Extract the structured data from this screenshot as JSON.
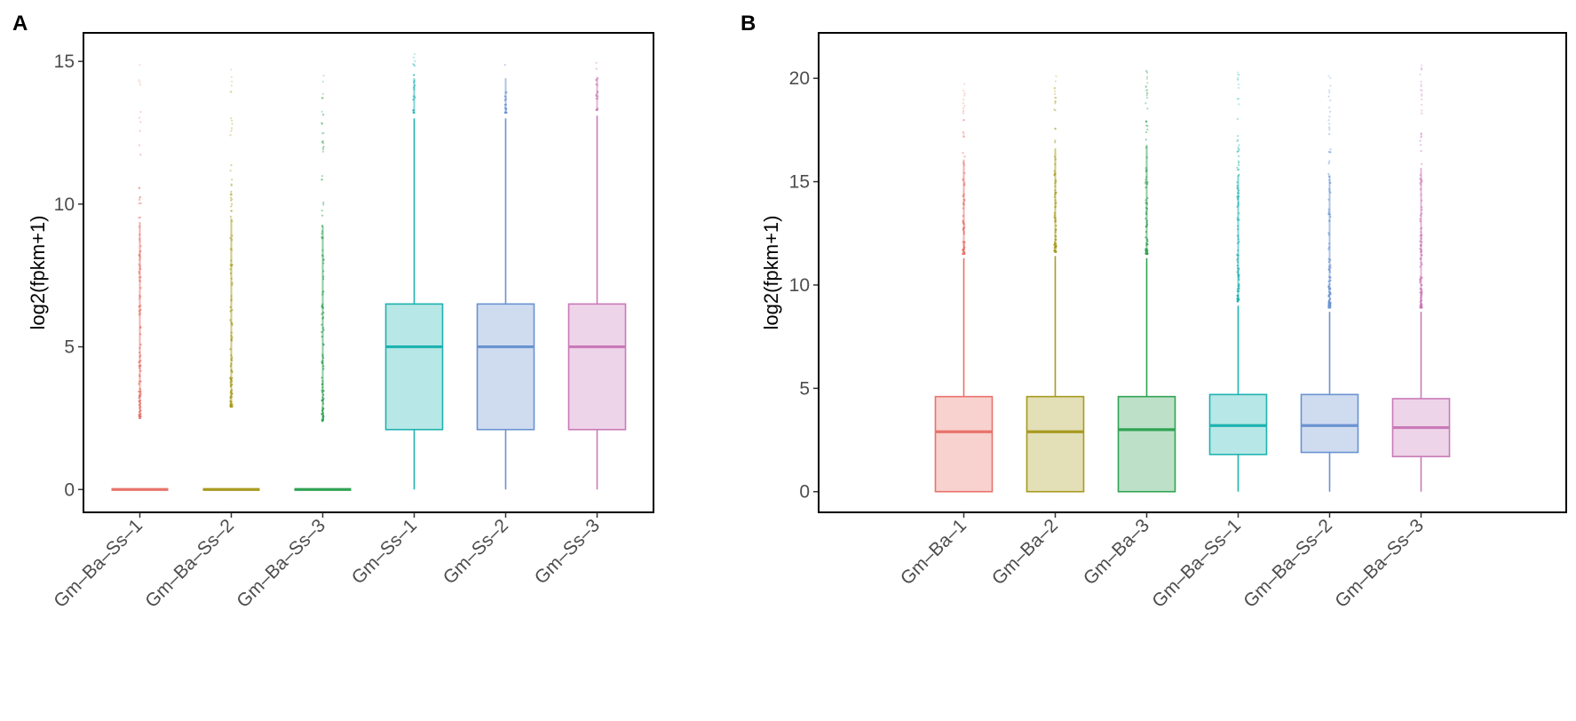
{
  "chart_data": [
    {
      "type": "boxplot",
      "panel": "A",
      "ylabel": "log2(fpkm+1)",
      "xlabel": "",
      "ylim": [
        -0.8,
        16.0
      ],
      "yticks": [
        0,
        5,
        10,
        15
      ],
      "ytick_labels": [
        "0",
        "5",
        "10",
        "15"
      ],
      "categories": [
        "Gm–Ba–Ss–1",
        "Gm–Ba–Ss–2",
        "Gm–Ba–Ss–3",
        "Gm–Ss–1",
        "Gm–Ss–2",
        "Gm–Ss–3"
      ],
      "colors": [
        "#e8736b",
        "#a89a1f",
        "#31a354",
        "#1eb3b0",
        "#6a93d1",
        "#c97ab8"
      ],
      "series": [
        {
          "name": "Gm–Ba–Ss–1",
          "min": 0,
          "q1": 0,
          "median": 0,
          "q3": 0,
          "max": 0,
          "outlier_range": [
            2.5,
            15.0
          ]
        },
        {
          "name": "Gm–Ba–Ss–2",
          "min": 0,
          "q1": 0,
          "median": 0,
          "q3": 0,
          "max": 0,
          "outlier_range": [
            2.9,
            14.9
          ]
        },
        {
          "name": "Gm–Ba–Ss–3",
          "min": 0,
          "q1": 0,
          "median": 0,
          "q3": 0,
          "max": 0,
          "outlier_range": [
            2.4,
            14.8
          ]
        },
        {
          "name": "Gm–Ss–1",
          "min": 0,
          "q1": 2.1,
          "median": 5.0,
          "q3": 6.5,
          "max": 13.0,
          "outlier_range": [
            13.2,
            15.4
          ]
        },
        {
          "name": "Gm–Ss–2",
          "min": 0,
          "q1": 2.1,
          "median": 5.0,
          "q3": 6.5,
          "max": 13.0,
          "outlier_range": [
            13.2,
            15.4
          ]
        },
        {
          "name": "Gm–Ss–3",
          "min": 0,
          "q1": 2.1,
          "median": 5.0,
          "q3": 6.5,
          "max": 13.1,
          "outlier_range": [
            13.3,
            15.4
          ]
        }
      ]
    },
    {
      "type": "boxplot",
      "panel": "B",
      "ylabel": "log2(fpkm+1)",
      "xlabel": "",
      "ylim": [
        -1.0,
        22.2
      ],
      "yticks": [
        0,
        5,
        10,
        15,
        20
      ],
      "ytick_labels": [
        "0",
        "5",
        "10",
        "15",
        "20"
      ],
      "categories": [
        "Gm–Ba–1",
        "Gm–Ba–2",
        "Gm–Ba–3",
        "Gm–Ba–Ss–1",
        "Gm–Ba–Ss–2",
        "Gm–Ba–Ss–3"
      ],
      "colors": [
        "#e8736b",
        "#a89a1f",
        "#31a354",
        "#1eb3b0",
        "#6a93d1",
        "#c97ab8"
      ],
      "series": [
        {
          "name": "Gm–Ba–1",
          "min": 0,
          "q1": 0,
          "median": 2.9,
          "q3": 4.6,
          "max": 11.3,
          "outlier_range": [
            11.5,
            19.8
          ]
        },
        {
          "name": "Gm–Ba–2",
          "min": 0,
          "q1": 0,
          "median": 2.9,
          "q3": 4.6,
          "max": 11.4,
          "outlier_range": [
            11.6,
            20.7
          ]
        },
        {
          "name": "Gm–Ba–3",
          "min": 0,
          "q1": 0,
          "median": 3.0,
          "q3": 4.6,
          "max": 11.3,
          "outlier_range": [
            11.5,
            21.1
          ]
        },
        {
          "name": "Gm–Ba–Ss–1",
          "min": 0,
          "q1": 1.8,
          "median": 3.2,
          "q3": 4.7,
          "max": 9.0,
          "outlier_range": [
            9.2,
            20.3
          ]
        },
        {
          "name": "Gm–Ba–Ss–2",
          "min": 0,
          "q1": 1.9,
          "median": 3.2,
          "q3": 4.7,
          "max": 8.7,
          "outlier_range": [
            8.9,
            20.5
          ]
        },
        {
          "name": "Gm–Ba–Ss–3",
          "min": 0,
          "q1": 1.7,
          "median": 3.1,
          "q3": 4.5,
          "max": 8.7,
          "outlier_range": [
            8.9,
            21.2
          ]
        }
      ]
    }
  ]
}
